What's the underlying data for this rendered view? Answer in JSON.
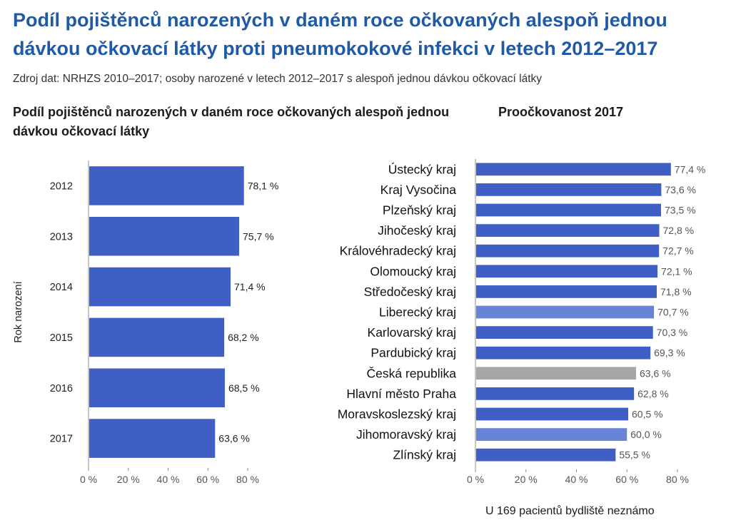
{
  "title": "Podíl pojištěnců narozených v daném roce očkovaných alespoň jednou dávkou očkovací látky proti pneumokokové infekci v letech 2012–2017",
  "source": "Zdroj dat: NRHZS 2010–2017; osoby narozené v letech 2012–2017 s alespoň jednou dávkou očkovací látky",
  "footnote": "U 169 pacientů bydliště neznámo",
  "colors": {
    "bar": "#3f5fc4",
    "bar_highlight": "#6784d6",
    "bar_national": "#a6a6a6",
    "title": "#1f5aa6"
  },
  "chart_data": [
    {
      "type": "bar",
      "orientation": "horizontal",
      "title": "Podíl pojištěnců narozených v daném roce očkovaných alespoň jednou dávkou očkovací látky",
      "ylabel": "Rok narození",
      "xlabel": "",
      "categories": [
        "2012",
        "2013",
        "2014",
        "2015",
        "2016",
        "2017"
      ],
      "values": [
        78.1,
        75.7,
        71.4,
        68.2,
        68.5,
        63.6
      ],
      "value_labels": [
        "78,1 %",
        "75,7 %",
        "71,4 %",
        "68,2 %",
        "68,5 %",
        "63,6 %"
      ],
      "xlim": [
        0,
        80
      ],
      "xticks": [
        0,
        20,
        40,
        60,
        80
      ],
      "xtick_labels": [
        "0 %",
        "20 %",
        "40 %",
        "60 %",
        "80 %"
      ],
      "grid": false
    },
    {
      "type": "bar",
      "orientation": "horizontal",
      "title": "Proočkovanost 2017",
      "xlabel": "",
      "ylabel": "",
      "categories": [
        "Ústecký kraj",
        "Kraj Vysočina",
        "Plzeňský kraj",
        "Jihočeský kraj",
        "Královéhradecký kraj",
        "Olomoucký kraj",
        "Středočeský kraj",
        "Liberecký kraj",
        "Karlovarský kraj",
        "Pardubický kraj",
        "Česká republika",
        "Hlavní město Praha",
        "Moravskoslezský kraj",
        "Jihomoravský kraj",
        "Zlínský kraj"
      ],
      "values": [
        77.4,
        73.6,
        73.5,
        72.8,
        72.7,
        72.1,
        71.8,
        70.7,
        70.3,
        69.3,
        63.6,
        62.8,
        60.5,
        60.0,
        55.5
      ],
      "value_labels": [
        "77,4 %",
        "73,6 %",
        "73,5 %",
        "72,8 %",
        "72,7 %",
        "72,1 %",
        "71,8 %",
        "70,7 %",
        "70,3 %",
        "69,3 %",
        "63,6 %",
        "62,8 %",
        "60,5 %",
        "60,0 %",
        "55,5 %"
      ],
      "bar_colors": [
        "bar",
        "bar",
        "bar",
        "bar",
        "bar",
        "bar",
        "bar",
        "bar_highlight",
        "bar",
        "bar",
        "bar_national",
        "bar",
        "bar",
        "bar_highlight",
        "bar"
      ],
      "xlim": [
        0,
        80
      ],
      "xticks": [
        0,
        20,
        40,
        60,
        80
      ],
      "xtick_labels": [
        "0 %",
        "20 %",
        "40 %",
        "60 %",
        "80 %"
      ],
      "grid": false
    }
  ]
}
